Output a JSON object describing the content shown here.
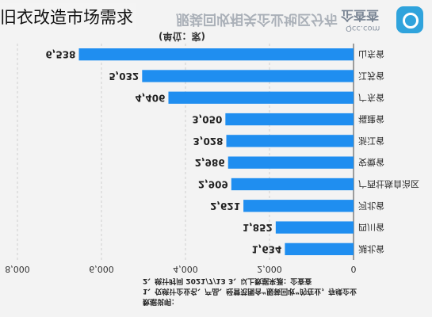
{
  "overlay_title": "旧衣改造市场需求",
  "heading": "服装回收相关企业地区分布",
  "brand": {
    "name": "企查查",
    "domain": "Qcc.com",
    "icon": "qcc-logo-icon"
  },
  "unit_label": "(单位：家)",
  "notes": {
    "title": "数据说明：",
    "lines": [
      "1、仅统计企业名、产品、经营范围含“服装回收”的在业，存续企业",
      "2、统计时间 2021/7/13      3、以上数据来源：企查查"
    ]
  },
  "chart_data": {
    "type": "bar",
    "orientation": "horizontal",
    "categories": [
      "山东省",
      "江苏省",
      "广东省",
      "福建省",
      "浙江省",
      "安徽省",
      "广西壮族自治区",
      "河北省",
      "四川省",
      "湖北省"
    ],
    "values": [
      6538,
      5032,
      4406,
      3050,
      3028,
      2986,
      2909,
      2621,
      1852,
      1634
    ],
    "value_labels": [
      "6,538",
      "5,032",
      "4,406",
      "3,050",
      "3,028",
      "2,986",
      "2,909",
      "2,621",
      "1,852",
      "1,634"
    ],
    "xlim": [
      0,
      8000
    ],
    "ticks": [
      0,
      2000,
      4000,
      6000,
      8000
    ],
    "tick_labels": [
      "0",
      "2,000",
      "4,000",
      "6,000",
      "8,000"
    ],
    "mirrored": true,
    "grid": true,
    "colors": {
      "bar": "#1f8ef0",
      "grid": "#cfcfcf",
      "axis": "#444444"
    }
  }
}
